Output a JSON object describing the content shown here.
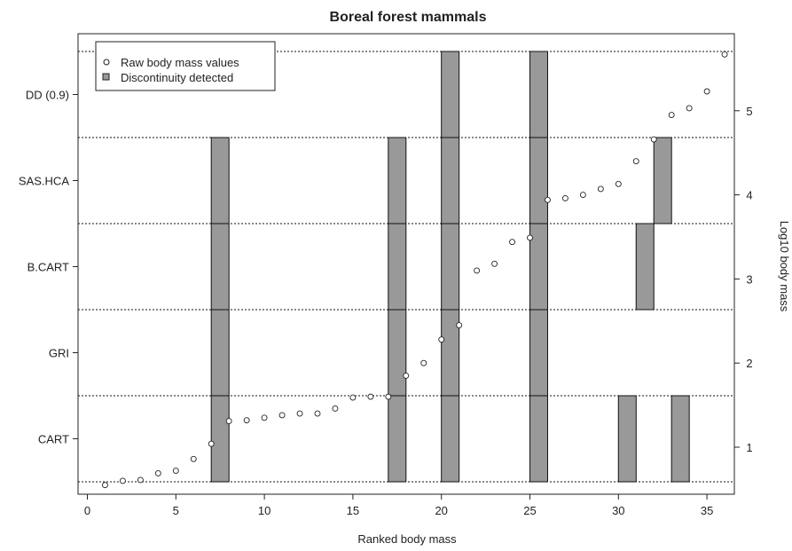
{
  "chart_data": {
    "type": "scatter",
    "title": "Boreal forest mammals",
    "xlabel": "Ranked body mass",
    "ylabel_right": "Log10 body mass",
    "xlim": [
      0,
      36
    ],
    "xticks": [
      0,
      5,
      10,
      15,
      20,
      25,
      30,
      35
    ],
    "ylim_right": [
      0.5,
      5.7
    ],
    "yticks_right": [
      1,
      2,
      3,
      4,
      5
    ],
    "methods": [
      "CART",
      "GRI",
      "B.CART",
      "SAS.HCA",
      "DD (0.9)"
    ],
    "legend": {
      "position": "top-left",
      "entries": [
        {
          "label": "Raw body mass values",
          "symbol": "open-circle"
        },
        {
          "label": "Discontinuity detected",
          "symbol": "gray-square"
        }
      ]
    },
    "series": [
      {
        "name": "Raw body mass values",
        "x": [
          1,
          2,
          3,
          4,
          5,
          6,
          7,
          8,
          9,
          10,
          11,
          12,
          13,
          14,
          15,
          16,
          17,
          18,
          19,
          20,
          21,
          22,
          23,
          24,
          25,
          26,
          27,
          28,
          29,
          30,
          31,
          32,
          33,
          34,
          35,
          36
        ],
        "y": [
          0.55,
          0.6,
          0.61,
          0.69,
          0.72,
          0.86,
          1.04,
          1.31,
          1.32,
          1.35,
          1.38,
          1.4,
          1.4,
          1.46,
          1.59,
          1.6,
          1.6,
          1.85,
          2.0,
          2.28,
          2.45,
          3.1,
          3.18,
          3.44,
          3.49,
          3.94,
          3.96,
          4.0,
          4.07,
          4.13,
          4.4,
          4.66,
          4.95,
          5.03,
          5.23,
          5.67
        ]
      }
    ],
    "discontinuities": [
      {
        "method": "CART",
        "x": [
          7.5,
          17.5,
          20.5,
          25.5,
          30.5,
          33.5
        ]
      },
      {
        "method": "GRI",
        "x": [
          7.5,
          17.5,
          20.5,
          25.5
        ]
      },
      {
        "method": "B.CART",
        "x": [
          7.5,
          17.5,
          20.5,
          25.5,
          31.5
        ]
      },
      {
        "method": "SAS.HCA",
        "x": [
          7.5,
          17.5,
          20.5,
          25.5,
          32.5
        ]
      },
      {
        "method": "DD (0.9)",
        "x": [
          20.5,
          25.5
        ]
      }
    ],
    "colors": {
      "bar_fill": "#999999",
      "bar_stroke": "#111111",
      "point_stroke": "#222222",
      "divider": "#111111"
    }
  }
}
